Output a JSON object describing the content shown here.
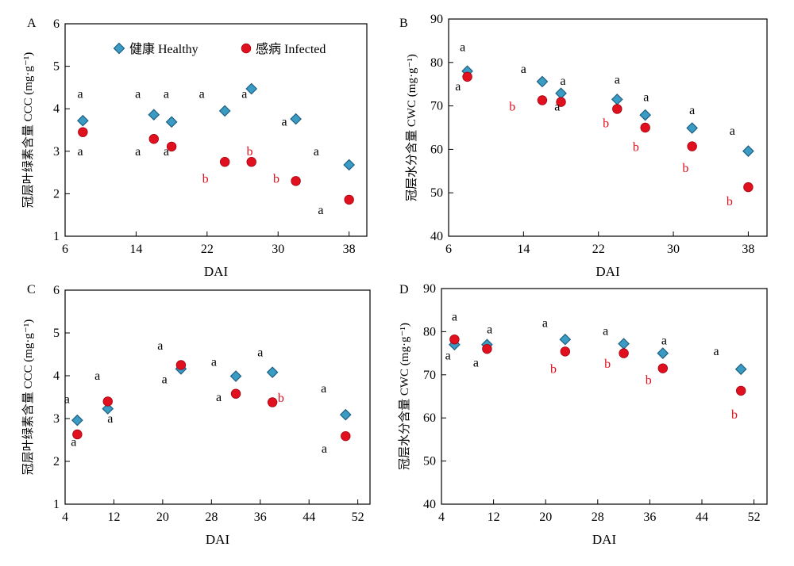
{
  "figure": {
    "legend": {
      "healthy": "健康 Healthy",
      "infected": "感病 Infected"
    },
    "colors": {
      "healthy": "#3a9cc4",
      "healthy_edge": "#1f5f80",
      "infected": "#e0101e",
      "letter_black": "#000000",
      "letter_red": "#e0101e"
    }
  },
  "chart_data": [
    {
      "panel": "A",
      "type": "scatter",
      "xlabel": "DAI",
      "ylabel": "冠层叶绿素含量 CCC (mg·g⁻¹)",
      "xlim": [
        6,
        40
      ],
      "ylim": [
        1,
        6
      ],
      "xticks": [
        "6",
        "14",
        "22",
        "30",
        "38"
      ],
      "yticks": [
        "1",
        "2",
        "3",
        "4",
        "5",
        "6"
      ],
      "legend": "top",
      "series": [
        {
          "name": "健康 Healthy",
          "marker": "diamond",
          "x": [
            8,
            16,
            18,
            24,
            27,
            32,
            38
          ],
          "y": [
            3.72,
            3.86,
            3.69,
            3.95,
            4.47,
            3.76,
            2.68
          ]
        },
        {
          "name": "感病 Infected",
          "marker": "circle",
          "x": [
            8,
            16,
            18,
            24,
            27,
            32,
            38
          ],
          "y": [
            3.45,
            3.29,
            3.11,
            2.75,
            2.75,
            2.3,
            1.86
          ]
        }
      ],
      "annotations": [
        {
          "text": "a",
          "color": "black",
          "x": 7.7,
          "y": 4.35
        },
        {
          "text": "a",
          "color": "black",
          "x": 7.7,
          "y": 3.0
        },
        {
          "text": "a",
          "color": "black",
          "x": 14.2,
          "y": 4.35
        },
        {
          "text": "a",
          "color": "black",
          "x": 14.2,
          "y": 3.0
        },
        {
          "text": "a",
          "color": "black",
          "x": 17.4,
          "y": 4.35
        },
        {
          "text": "a",
          "color": "black",
          "x": 17.4,
          "y": 3.0
        },
        {
          "text": "a",
          "color": "black",
          "x": 21.4,
          "y": 4.35
        },
        {
          "text": "b",
          "color": "red",
          "x": 21.8,
          "y": 2.35
        },
        {
          "text": "a",
          "color": "black",
          "x": 26.2,
          "y": 4.35
        },
        {
          "text": "b",
          "color": "red",
          "x": 26.8,
          "y": 3.0
        },
        {
          "text": "a",
          "color": "black",
          "x": 30.7,
          "y": 3.7
        },
        {
          "text": "b",
          "color": "red",
          "x": 29.8,
          "y": 2.35
        },
        {
          "text": "a",
          "color": "black",
          "x": 34.3,
          "y": 3.0
        },
        {
          "text": "a",
          "color": "black",
          "x": 34.8,
          "y": 1.62
        }
      ]
    },
    {
      "panel": "B",
      "type": "scatter",
      "xlabel": "DAI",
      "ylabel": "冠层水分含量 CWC (mg·g⁻¹)",
      "xlim": [
        6,
        40
      ],
      "ylim": [
        40,
        90
      ],
      "xticks": [
        "6",
        "14",
        "22",
        "30",
        "38"
      ],
      "yticks": [
        "40",
        "50",
        "60",
        "70",
        "80",
        "90"
      ],
      "series": [
        {
          "name": "健康 Healthy",
          "marker": "diamond",
          "x": [
            8,
            16,
            18,
            24,
            27,
            32,
            38
          ],
          "y": [
            78,
            75.6,
            72.9,
            71.5,
            67.9,
            64.9,
            59.6
          ]
        },
        {
          "name": "感病 Infected",
          "marker": "circle",
          "x": [
            8,
            16,
            18,
            24,
            27,
            32,
            38
          ],
          "y": [
            76.7,
            71.3,
            70.9,
            69.3,
            65,
            60.7,
            51.3
          ]
        }
      ],
      "annotations": [
        {
          "text": "a",
          "color": "black",
          "x": 7.5,
          "y": 83.5
        },
        {
          "text": "a",
          "color": "black",
          "x": 7.0,
          "y": 74.5
        },
        {
          "text": "a",
          "color": "black",
          "x": 14.0,
          "y": 78.5
        },
        {
          "text": "b",
          "color": "red",
          "x": 12.8,
          "y": 69.8
        },
        {
          "text": "a",
          "color": "black",
          "x": 18.2,
          "y": 75.8
        },
        {
          "text": "a",
          "color": "black",
          "x": 17.6,
          "y": 69.8
        },
        {
          "text": "a",
          "color": "black",
          "x": 24.0,
          "y": 76.0
        },
        {
          "text": "b",
          "color": "red",
          "x": 22.8,
          "y": 66.0
        },
        {
          "text": "a",
          "color": "black",
          "x": 27.1,
          "y": 72.0
        },
        {
          "text": "b",
          "color": "red",
          "x": 26.0,
          "y": 60.5
        },
        {
          "text": "a",
          "color": "black",
          "x": 32.0,
          "y": 69.0
        },
        {
          "text": "b",
          "color": "red",
          "x": 31.3,
          "y": 55.7
        },
        {
          "text": "a",
          "color": "black",
          "x": 36.3,
          "y": 64.3
        },
        {
          "text": "b",
          "color": "red",
          "x": 36.0,
          "y": 48.0
        }
      ]
    },
    {
      "panel": "C",
      "type": "scatter",
      "xlabel": "DAI",
      "ylabel": "冠层叶绿素含量 CCC (mg·g⁻¹)",
      "xlim": [
        4,
        54
      ],
      "ylim": [
        1,
        6
      ],
      "xticks": [
        "4",
        "12",
        "20",
        "28",
        "36",
        "44",
        "52"
      ],
      "yticks": [
        "1",
        "2",
        "3",
        "4",
        "5",
        "6"
      ],
      "series": [
        {
          "name": "健康 Healthy",
          "marker": "diamond",
          "x": [
            6,
            11,
            23,
            32,
            38,
            50
          ],
          "y": [
            2.96,
            3.23,
            4.16,
            3.99,
            4.08,
            3.09
          ]
        },
        {
          "name": "感病 Infected",
          "marker": "circle",
          "x": [
            6,
            11,
            23,
            32,
            38,
            50
          ],
          "y": [
            2.63,
            3.4,
            4.25,
            3.58,
            3.38,
            2.59
          ]
        }
      ],
      "annotations": [
        {
          "text": "a",
          "color": "black",
          "x": 4.3,
          "y": 3.45
        },
        {
          "text": "a",
          "color": "black",
          "x": 5.4,
          "y": 2.45
        },
        {
          "text": "a",
          "color": "black",
          "x": 9.3,
          "y": 4.0
        },
        {
          "text": "a",
          "color": "black",
          "x": 11.4,
          "y": 3.0
        },
        {
          "text": "a",
          "color": "black",
          "x": 19.6,
          "y": 4.7
        },
        {
          "text": "a",
          "color": "black",
          "x": 20.3,
          "y": 3.92
        },
        {
          "text": "a",
          "color": "black",
          "x": 28.4,
          "y": 4.32
        },
        {
          "text": "a",
          "color": "black",
          "x": 29.2,
          "y": 3.5
        },
        {
          "text": "a",
          "color": "black",
          "x": 36.0,
          "y": 4.55
        },
        {
          "text": "b",
          "color": "red",
          "x": 39.4,
          "y": 3.48
        },
        {
          "text": "a",
          "color": "black",
          "x": 46.4,
          "y": 3.7
        },
        {
          "text": "a",
          "color": "black",
          "x": 46.5,
          "y": 2.3
        }
      ]
    },
    {
      "panel": "D",
      "type": "scatter",
      "xlabel": "DAI",
      "ylabel": "冠层水分含量 CWC (mg·g⁻¹)",
      "xlim": [
        4,
        54
      ],
      "ylim": [
        40,
        90
      ],
      "xticks": [
        "4",
        "12",
        "20",
        "28",
        "36",
        "44",
        "52"
      ],
      "yticks": [
        "40",
        "50",
        "60",
        "70",
        "80",
        "90"
      ],
      "series": [
        {
          "name": "健康 Healthy",
          "marker": "diamond",
          "x": [
            6,
            11,
            23,
            32,
            38,
            50
          ],
          "y": [
            77,
            77,
            78.2,
            77.2,
            75,
            71.3
          ]
        },
        {
          "name": "感病 Infected",
          "marker": "circle",
          "x": [
            6,
            11,
            23,
            32,
            38,
            50
          ],
          "y": [
            78.2,
            76,
            75.4,
            75,
            71.5,
            66.3
          ]
        }
      ],
      "annotations": [
        {
          "text": "a",
          "color": "black",
          "x": 6.0,
          "y": 83.5
        },
        {
          "text": "a",
          "color": "black",
          "x": 5.0,
          "y": 74.5
        },
        {
          "text": "a",
          "color": "black",
          "x": 11.4,
          "y": 80.5
        },
        {
          "text": "a",
          "color": "black",
          "x": 9.3,
          "y": 72.8
        },
        {
          "text": "a",
          "color": "black",
          "x": 19.9,
          "y": 82.0
        },
        {
          "text": "b",
          "color": "red",
          "x": 21.2,
          "y": 71.3
        },
        {
          "text": "a",
          "color": "black",
          "x": 29.2,
          "y": 80.2
        },
        {
          "text": "b",
          "color": "red",
          "x": 29.5,
          "y": 72.5
        },
        {
          "text": "a",
          "color": "black",
          "x": 38.2,
          "y": 78.0
        },
        {
          "text": "b",
          "color": "red",
          "x": 35.8,
          "y": 68.8
        },
        {
          "text": "a",
          "color": "black",
          "x": 46.2,
          "y": 75.5
        },
        {
          "text": "b",
          "color": "red",
          "x": 49.0,
          "y": 60.8
        }
      ]
    }
  ]
}
